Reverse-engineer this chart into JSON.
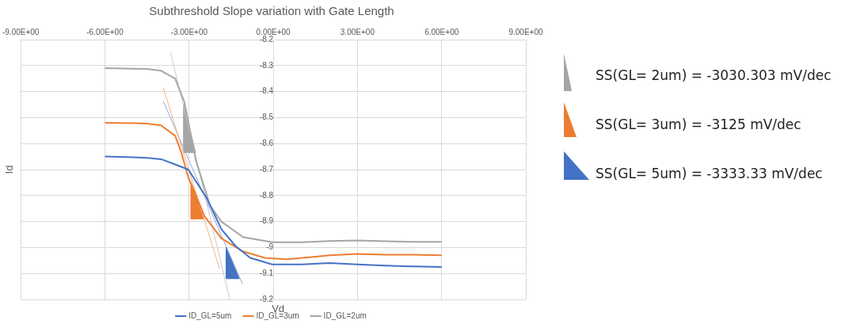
{
  "chart_data": {
    "type": "line",
    "title": "Subthreshold Slope variation with Gate Length",
    "xlabel": "Vd",
    "ylabel": "Id",
    "xlim": [
      -9,
      9
    ],
    "xticks": [
      {
        "value": -9,
        "label": "-9.00E+00"
      },
      {
        "value": -6,
        "label": "-6.00E+00"
      },
      {
        "value": -3,
        "label": "-3.00E+00"
      },
      {
        "value": 0,
        "label": "0.00E+00"
      },
      {
        "value": 3,
        "label": "3.00E+00"
      },
      {
        "value": 6,
        "label": "6.00E+00"
      },
      {
        "value": 9,
        "label": "9.00E+00"
      }
    ],
    "ylim": [
      -9.2,
      -8.2
    ],
    "yticks": [
      -9.2,
      -9.1,
      -9,
      -8.9,
      -8.8,
      -8.7,
      -8.6,
      -8.5,
      -8.4,
      -8.3,
      -8.2
    ],
    "grid": true,
    "legend": "bottom",
    "marker": "none",
    "line_style": "solid",
    "series": [
      {
        "name": "ID_GL=5um",
        "color": "#4472c4",
        "x": [
          -6,
          -5,
          -4.5,
          -4,
          -3.5,
          -3.03,
          -2.91,
          -2.37,
          -1.85,
          -1.34,
          -0.82,
          -0.04,
          1,
          2,
          3,
          4,
          5,
          6
        ],
        "values": [
          -8.65,
          -8.653,
          -8.655,
          -8.66,
          -8.68,
          -8.7,
          -8.72,
          -8.81,
          -8.93,
          -8.995,
          -9.04,
          -9.065,
          -9.065,
          -9.06,
          -9.065,
          -9.07,
          -9.073,
          -9.075
        ]
      },
      {
        "name": "ID_GL=3um",
        "color": "#ed7d31",
        "x": [
          -6,
          -5,
          -4.5,
          -4,
          -3.5,
          -3.29,
          -3.03,
          -2.83,
          -2.45,
          -1.85,
          -1.08,
          -0.3,
          0.5,
          1.5,
          2,
          3,
          4,
          5,
          6
        ],
        "values": [
          -8.52,
          -8.522,
          -8.523,
          -8.53,
          -8.57,
          -8.63,
          -8.73,
          -8.78,
          -8.88,
          -8.965,
          -9.015,
          -9.04,
          -9.045,
          -9.035,
          -9.03,
          -9.025,
          -9.028,
          -9.028,
          -9.03
        ]
      },
      {
        "name": "ID_GL=2um",
        "color": "#a5a5a5",
        "x": [
          -6,
          -5,
          -4.5,
          -4,
          -3.5,
          -3.17,
          -2.77,
          -2.51,
          -2.25,
          -1.85,
          -1.08,
          -0.04,
          1,
          2,
          3,
          4,
          5,
          6
        ],
        "values": [
          -8.31,
          -8.312,
          -8.313,
          -8.32,
          -8.35,
          -8.44,
          -8.66,
          -8.75,
          -8.84,
          -8.9,
          -8.96,
          -8.98,
          -8.98,
          -8.975,
          -8.973,
          -8.976,
          -8.978,
          -8.978
        ]
      },
      {
        "type": "line",
        "color": "#c9c9c9",
        "x": [
          -3.66,
          -1.55
        ],
        "values": [
          -8.25,
          -9.2
        ]
      },
      {
        "type": "line",
        "color": "#f4b183",
        "x": [
          -3.92,
          -1.92
        ],
        "values": [
          -8.386,
          -9.08
        ]
      },
      {
        "type": "line",
        "color": "#8faadc",
        "x": [
          -3.92,
          -1.1
        ],
        "values": [
          -8.437,
          -9.14
        ]
      },
      {
        "type": "area",
        "color": "#a5a5a5",
        "x": [
          -3.19,
          -3.19,
          -2.77,
          -3.19
        ],
        "values": [
          -8.45,
          -8.635,
          -8.635,
          -8.45
        ]
      },
      {
        "type": "area",
        "color": "#ed7d31",
        "x": [
          -2.93,
          -2.93,
          -2.48,
          -2.93
        ],
        "values": [
          -8.75,
          -8.89,
          -8.89,
          -8.75
        ]
      },
      {
        "type": "area",
        "color": "#4472c4",
        "x": [
          -1.68,
          -1.68,
          -1.21,
          -1.68
        ],
        "values": [
          -9,
          -9.12,
          -9.12,
          -9
        ]
      }
    ],
    "annotations": [
      "SS(GL= 2um) = -3030.303 mV/dec",
      "SS(GL= 3um) = -3125 mV/dec",
      "SS(GL= 5um) = -3333.33 mV/dec"
    ]
  }
}
